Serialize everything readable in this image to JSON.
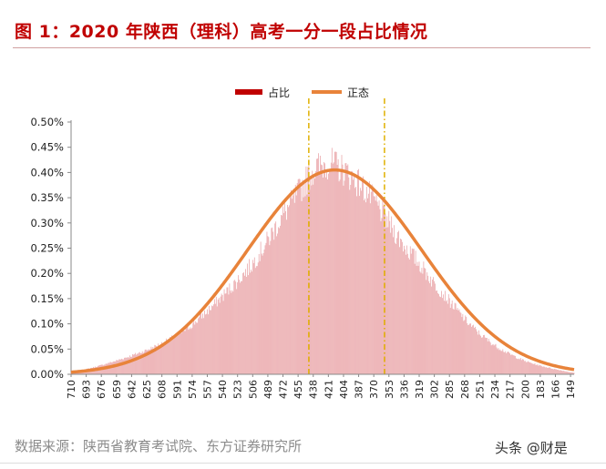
{
  "title": "图 1：2020 年陕西（理科）高考一分一段占比情况",
  "source": "数据来源：陕西省教育考试院、东方证券研究所",
  "watermark": "头条 @财是",
  "colors": {
    "bars": "#e79a9e",
    "bars_legend": "#c00000",
    "curve": "#e8833a",
    "marker": "#e0b000",
    "title": "#c00000"
  },
  "chart_data": {
    "type": "bar",
    "legend": [
      "占比",
      "正态"
    ],
    "legend_placement": "top-center",
    "x_range": [
      710,
      145
    ],
    "x_ticks": [
      710,
      693,
      676,
      659,
      642,
      625,
      608,
      591,
      574,
      557,
      540,
      523,
      506,
      489,
      472,
      455,
      438,
      421,
      404,
      387,
      370,
      353,
      336,
      319,
      302,
      285,
      268,
      251,
      234,
      217,
      200,
      183,
      166,
      149
    ],
    "y_ticks": [
      "0.00%",
      "0.05%",
      "0.10%",
      "0.15%",
      "0.20%",
      "0.25%",
      "0.30%",
      "0.35%",
      "0.40%",
      "0.45%",
      "0.50%"
    ],
    "ylim": [
      0,
      0.5
    ],
    "normal_curve": {
      "mean": 414,
      "sd": 98,
      "peak": 0.405
    },
    "marker_lines": [
      443,
      358
    ],
    "bar_envelope": [
      {
        "score": 710,
        "pct": 0.004
      },
      {
        "score": 693,
        "pct": 0.01
      },
      {
        "score": 676,
        "pct": 0.018
      },
      {
        "score": 659,
        "pct": 0.027
      },
      {
        "score": 642,
        "pct": 0.037
      },
      {
        "score": 625,
        "pct": 0.048
      },
      {
        "score": 608,
        "pct": 0.061
      },
      {
        "score": 591,
        "pct": 0.077
      },
      {
        "score": 574,
        "pct": 0.098
      },
      {
        "score": 557,
        "pct": 0.125
      },
      {
        "score": 540,
        "pct": 0.155
      },
      {
        "score": 523,
        "pct": 0.185
      },
      {
        "score": 506,
        "pct": 0.22
      },
      {
        "score": 489,
        "pct": 0.265
      },
      {
        "score": 472,
        "pct": 0.315
      },
      {
        "score": 455,
        "pct": 0.36
      },
      {
        "score": 438,
        "pct": 0.405
      },
      {
        "score": 421,
        "pct": 0.42
      },
      {
        "score": 404,
        "pct": 0.405
      },
      {
        "score": 387,
        "pct": 0.38
      },
      {
        "score": 370,
        "pct": 0.345
      },
      {
        "score": 353,
        "pct": 0.3
      },
      {
        "score": 336,
        "pct": 0.255
      },
      {
        "score": 319,
        "pct": 0.22
      },
      {
        "score": 302,
        "pct": 0.18
      },
      {
        "score": 285,
        "pct": 0.145
      },
      {
        "score": 268,
        "pct": 0.11
      },
      {
        "score": 251,
        "pct": 0.08
      },
      {
        "score": 234,
        "pct": 0.057
      },
      {
        "score": 217,
        "pct": 0.04
      },
      {
        "score": 200,
        "pct": 0.026
      },
      {
        "score": 183,
        "pct": 0.017
      },
      {
        "score": 166,
        "pct": 0.01
      },
      {
        "score": 149,
        "pct": 0.004
      },
      {
        "score": 145,
        "pct": 0.003
      }
    ]
  }
}
